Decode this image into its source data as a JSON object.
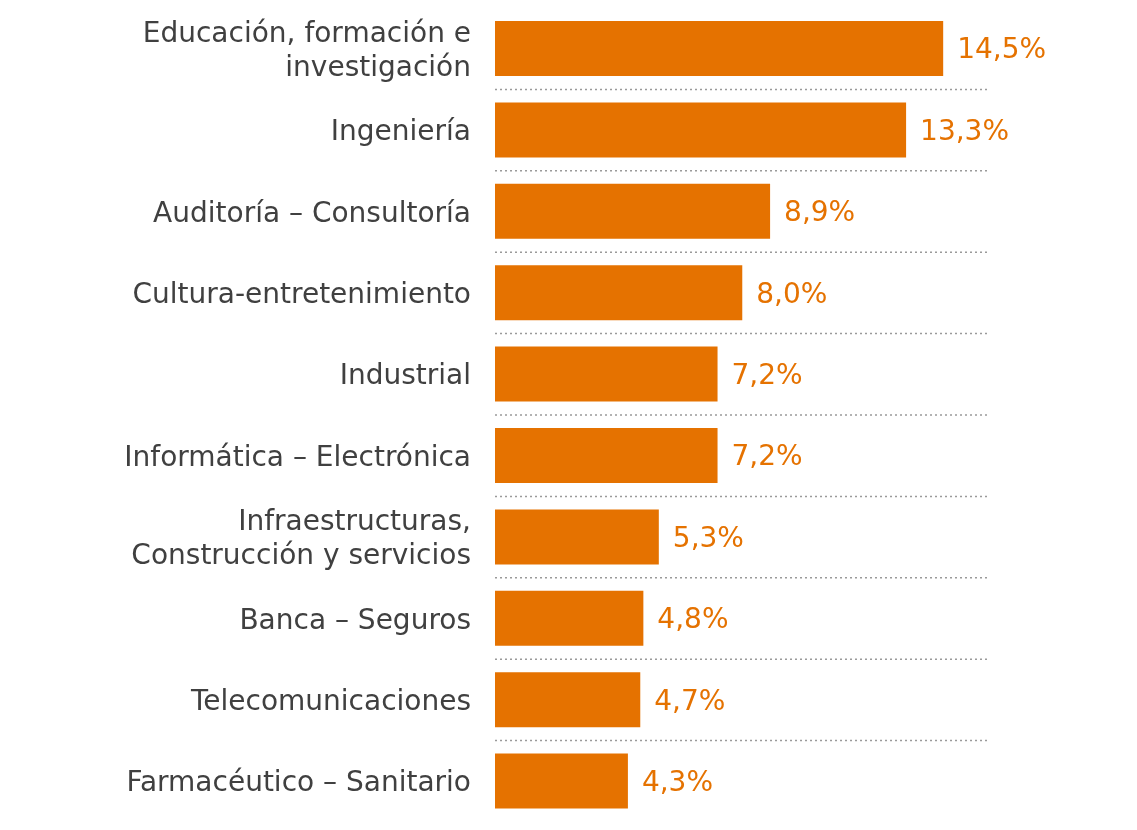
{
  "chart_data": {
    "type": "bar",
    "orientation": "horizontal",
    "categories": [
      "Educación, formación e investigación",
      "Ingeniería",
      "Auditoría – Consultoría",
      "Cultura-entretenimiento",
      "Industrial",
      "Informática – Electrónica",
      "Infraestructuras, Construcción y servicios",
      "Banca – Seguros",
      "Telecomunicaciones",
      "Farmacéutico – Sanitario"
    ],
    "values": [
      14.5,
      13.3,
      8.9,
      8.0,
      7.2,
      7.2,
      5.3,
      4.8,
      4.7,
      4.3
    ],
    "value_labels": [
      "14,5%",
      "13,3%",
      "8,9%",
      "8,0%",
      "7,2%",
      "7,2%",
      "5,3%",
      "4,8%",
      "4,7%",
      "4,3%"
    ],
    "color": "#e57200",
    "grid": "y",
    "tick_labels": "y"
  }
}
